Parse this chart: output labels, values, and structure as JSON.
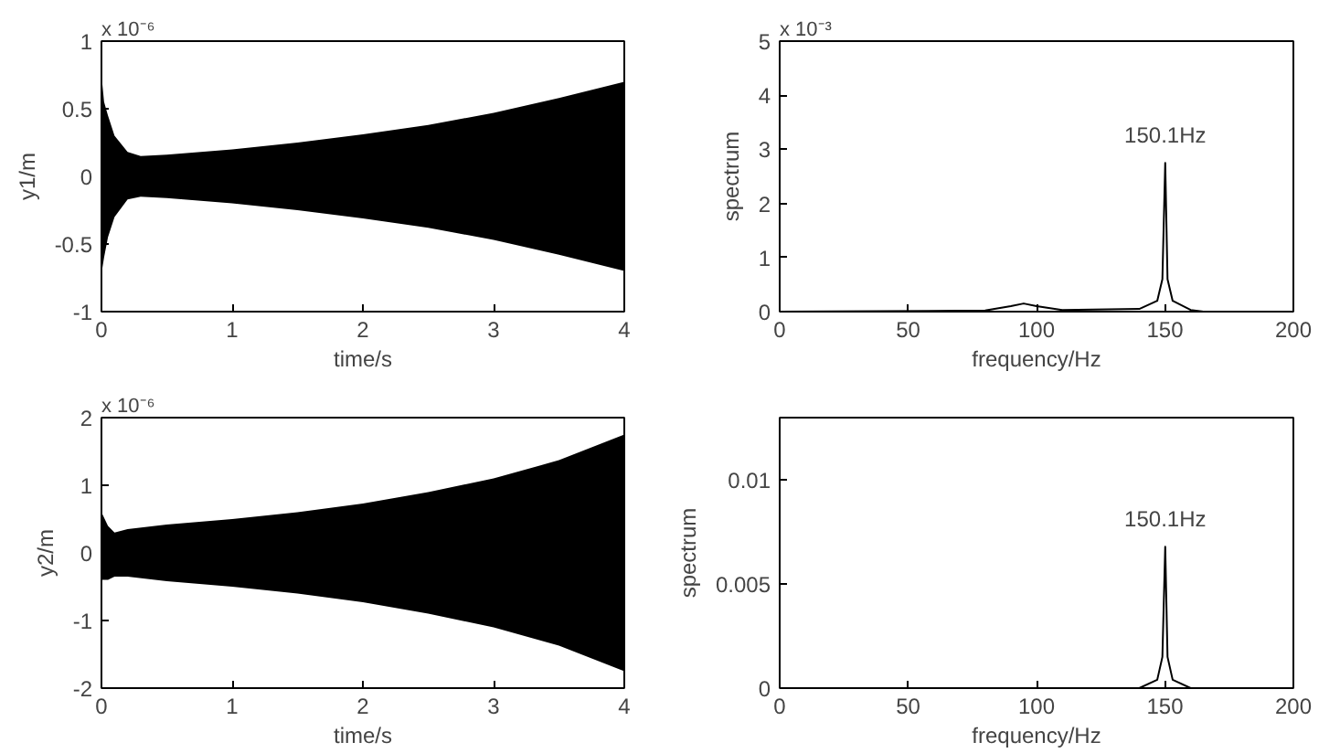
{
  "chart_data": [
    {
      "type": "area",
      "xlabel": "time/s",
      "ylabel": "y1/m",
      "xlim": [
        0,
        4
      ],
      "ylim": [
        -1,
        1
      ],
      "xticks": [
        0,
        1,
        2,
        3,
        4
      ],
      "yticks": [
        -1,
        -0.5,
        0,
        0.5,
        1
      ],
      "annotations": [
        "x 10⁻⁶"
      ],
      "x": [
        0,
        0.02,
        0.05,
        0.1,
        0.2,
        0.3,
        0.5,
        1,
        1.5,
        2,
        2.5,
        3,
        3.5,
        4
      ],
      "series": [
        {
          "color": "#000000",
          "values": [
            0.75,
            0.55,
            0.45,
            0.3,
            0.18,
            0.15,
            0.16,
            0.2,
            0.25,
            0.31,
            0.38,
            0.47,
            0.58,
            0.7
          ]
        },
        {
          "color": "#000000",
          "values": [
            -0.72,
            -0.6,
            -0.45,
            -0.3,
            -0.17,
            -0.15,
            -0.16,
            -0.2,
            -0.25,
            -0.31,
            -0.38,
            -0.47,
            -0.58,
            -0.7
          ]
        }
      ]
    },
    {
      "type": "line",
      "xlabel": "frequency/Hz",
      "ylabel": "spectrum",
      "xlim": [
        0,
        200
      ],
      "ylim": [
        0,
        5
      ],
      "xticks": [
        0,
        50,
        100,
        150,
        200
      ],
      "yticks": [
        0,
        1,
        2,
        3,
        4,
        5
      ],
      "annotations": [
        "x 10⁻³",
        {
          "text": "150.1Hz",
          "x": 150.1,
          "y": 2.75
        }
      ],
      "x": [
        0,
        80,
        90,
        95,
        100,
        110,
        140,
        147,
        149,
        150.1,
        151,
        153,
        160,
        165,
        200
      ],
      "series": [
        {
          "color": "#000000",
          "values": [
            0,
            0.02,
            0.1,
            0.15,
            0.1,
            0.03,
            0.05,
            0.2,
            0.6,
            2.75,
            0.6,
            0.2,
            0.03,
            0,
            0
          ]
        }
      ]
    },
    {
      "type": "area",
      "xlabel": "time/s",
      "ylabel": "y2/m",
      "xlim": [
        0,
        4
      ],
      "ylim": [
        -2,
        2
      ],
      "xticks": [
        0,
        1,
        2,
        3,
        4
      ],
      "yticks": [
        -2,
        -1,
        0,
        1,
        2
      ],
      "annotations": [
        "x 10⁻⁶"
      ],
      "x": [
        0,
        0.05,
        0.1,
        0.2,
        0.5,
        1,
        1.5,
        2,
        2.5,
        3,
        3.5,
        4
      ],
      "series": [
        {
          "color": "#000000",
          "values": [
            0.6,
            0.4,
            0.3,
            0.35,
            0.42,
            0.5,
            0.6,
            0.73,
            0.9,
            1.1,
            1.37,
            1.75
          ]
        },
        {
          "color": "#000000",
          "values": [
            -0.4,
            -0.4,
            -0.35,
            -0.35,
            -0.42,
            -0.5,
            -0.6,
            -0.73,
            -0.9,
            -1.1,
            -1.37,
            -1.75
          ]
        }
      ]
    },
    {
      "type": "line",
      "xlabel": "frequency/Hz",
      "ylabel": "spectrum",
      "xlim": [
        0,
        200
      ],
      "ylim": [
        0,
        0.013
      ],
      "xticks": [
        0,
        50,
        100,
        150,
        200
      ],
      "yticks": [
        0,
        0.005,
        0.01
      ],
      "annotations": [
        {
          "text": "150.1Hz",
          "x": 150.1,
          "y": 0.0068
        }
      ],
      "x": [
        0,
        140,
        147,
        149,
        150.1,
        151,
        153,
        160,
        200
      ],
      "series": [
        {
          "color": "#000000",
          "values": [
            0,
            0,
            0.0004,
            0.0015,
            0.0068,
            0.0015,
            0.0004,
            0,
            0
          ]
        }
      ]
    }
  ]
}
